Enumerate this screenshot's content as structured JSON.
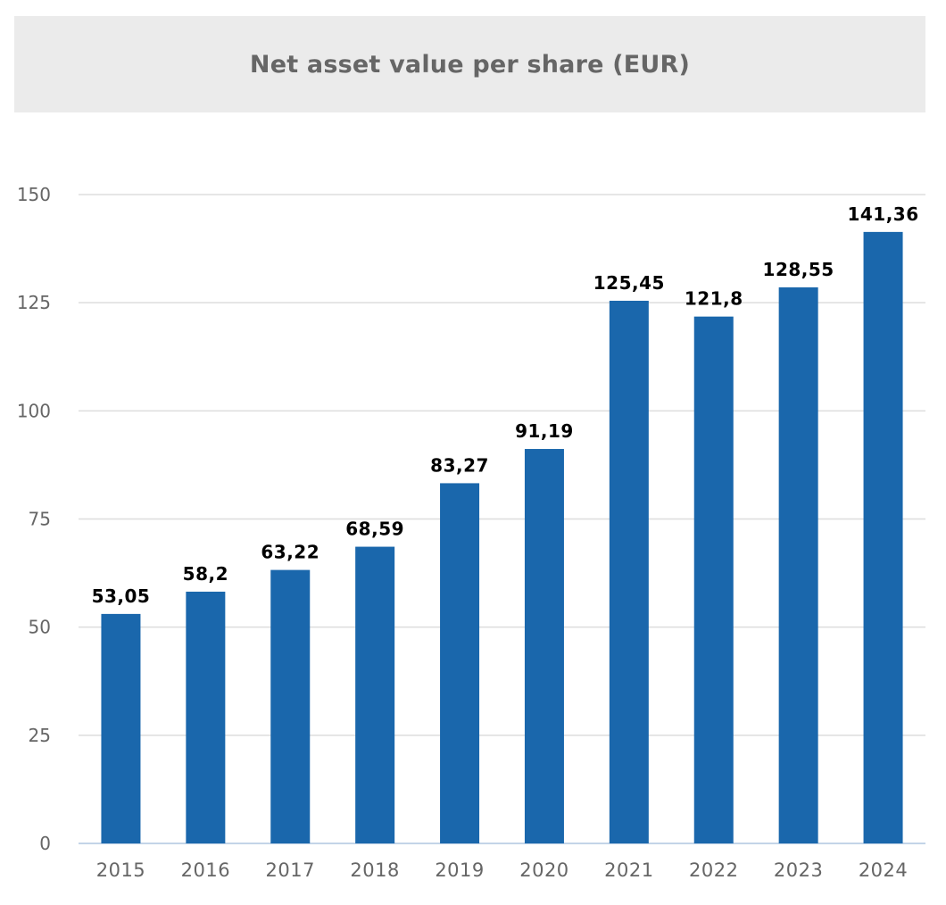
{
  "chart_data": {
    "type": "bar",
    "title": "Net asset value per share (EUR)",
    "categories": [
      "2015",
      "2016",
      "2017",
      "2018",
      "2019",
      "2020",
      "2021",
      "2022",
      "2023",
      "2024"
    ],
    "values": [
      53.05,
      58.2,
      63.22,
      68.59,
      83.27,
      91.19,
      125.45,
      121.8,
      128.55,
      141.36
    ],
    "value_labels": [
      "53,05",
      "58,2",
      "63,22",
      "68,59",
      "83,27",
      "91,19",
      "125,45",
      "121,8",
      "128,55",
      "141,36"
    ],
    "xlabel": "",
    "ylabel": "",
    "ylim": [
      0,
      150
    ],
    "yticks": [
      0,
      25,
      50,
      75,
      100,
      125,
      150
    ],
    "grid": true,
    "legend": "none",
    "colors": {
      "bar": "#1a67ac",
      "grid": "#dddddd",
      "baseline": "#c3d4e8",
      "title_band": "#ebebeb"
    }
  }
}
